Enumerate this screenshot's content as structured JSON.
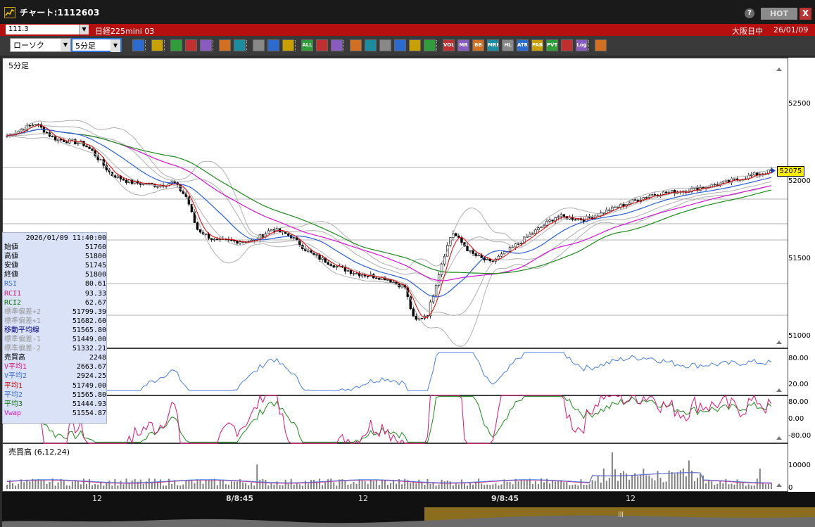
{
  "window": {
    "title": "チャート:1112603",
    "help_label": "?",
    "hot_label": "HOT",
    "close_label": "X"
  },
  "symbol_bar": {
    "code": "111.3",
    "name": "日経225mini 03",
    "market": "大阪日中",
    "date": "26/01/09"
  },
  "toolbar": {
    "chart_type": "ローソク",
    "period": "5分足",
    "buttons": [
      "zoom",
      "crosshair",
      "draw",
      "trend",
      "cursor",
      "arrow",
      "memo",
      "print",
      "candle1",
      "candle2",
      "all",
      "settings",
      "tools",
      "color",
      "order",
      "search",
      "bars",
      "marks",
      "info",
      "vol",
      "mr",
      "bb",
      "mre",
      "hl",
      "atr",
      "paba",
      "pvt",
      "window",
      "log",
      "export"
    ],
    "button_labels": {
      "all": "ALL",
      "vol": "VOL",
      "mr": "MR",
      "bb": "BB",
      "mre": "MRE",
      "hl": "HL",
      "atr": "ATR",
      "paba": "PABA",
      "pvt": "PVT",
      "log": "Log"
    }
  },
  "chart": {
    "period_label": "5分足",
    "last_price": "52075",
    "y_ticks": [
      "52500",
      "52000",
      "51500",
      "51000"
    ],
    "rsi_ticks": [
      "80.00",
      "20.00"
    ],
    "rci_ticks": [
      "80.00",
      "0.00",
      "-80.00"
    ],
    "vol_label": "売買高 (6,12,24)",
    "vol_ticks": [
      "10000",
      "0"
    ],
    "x_ticks": [
      "12",
      "8/8:45",
      "12",
      "9/8:45",
      "12"
    ]
  },
  "info": {
    "datetime": "2026/01/09  11:40:00",
    "rows": [
      {
        "k": "始値",
        "v": "51760",
        "c": "#000"
      },
      {
        "k": "高値",
        "v": "51800",
        "c": "#000"
      },
      {
        "k": "安値",
        "v": "51745",
        "c": "#000"
      },
      {
        "k": "終値",
        "v": "51800",
        "c": "#000"
      },
      {
        "k": "RSI",
        "v": "80.61",
        "c": "#3b6fd6"
      },
      {
        "k": "RCI1",
        "v": "93.33",
        "c": "#d4147a"
      },
      {
        "k": "RCI2",
        "v": "62.67",
        "c": "#107010"
      },
      {
        "k": "標準偏差+2",
        "v": "51799.39",
        "c": "#999"
      },
      {
        "k": "標準偏差+1",
        "v": "51682.60",
        "c": "#999"
      },
      {
        "k": "移動平均線",
        "v": "51565.80",
        "c": "#000080"
      },
      {
        "k": "標準偏差-1",
        "v": "51449.00",
        "c": "#999"
      },
      {
        "k": "標準偏差-2",
        "v": "51332.21",
        "c": "#999"
      },
      {
        "k": "売買高",
        "v": "2248",
        "c": "#000"
      },
      {
        "k": "V平均1",
        "v": "2663.67",
        "c": "#d4147a"
      },
      {
        "k": "V平均2",
        "v": "2924.25",
        "c": "#3b6fd6"
      },
      {
        "k": "平均1",
        "v": "51749.00",
        "c": "#c00"
      },
      {
        "k": "平均2",
        "v": "51565.80",
        "c": "#3b6fd6"
      },
      {
        "k": "平均3",
        "v": "51444.93",
        "c": "#107010"
      },
      {
        "k": "Vwap",
        "v": "51554.87",
        "c": "#d414d4"
      }
    ]
  },
  "colors": {
    "candle": "#000",
    "ma_short": "#dd0000",
    "ma_mid": "#2a5fd8",
    "ma_long": "#1a8a1a",
    "vwap": "#d414d4",
    "bands": "#b0b0b0",
    "rsi": "#4a7fe0",
    "rci1": "#e01477",
    "rci2": "#1a8a1a",
    "volume": "#808080"
  }
}
